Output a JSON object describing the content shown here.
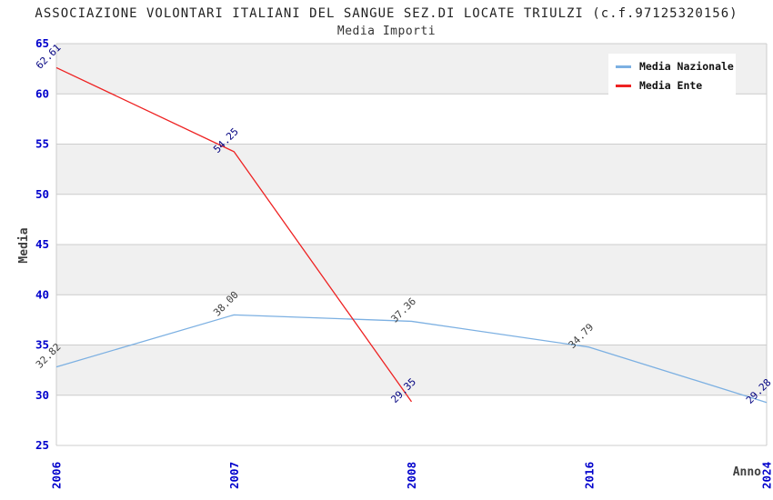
{
  "header": {
    "title": "ASSOCIAZIONE VOLONTARI ITALIANI DEL SANGUE SEZ.DI LOCATE TRIULZI (c.f.97125320156)",
    "subtitle": "Media Importi"
  },
  "legend": {
    "items": [
      {
        "label": "Media Nazionale",
        "color": "#7cb0e2"
      },
      {
        "label": "Media Ente",
        "color": "#ee2222"
      }
    ]
  },
  "chart_data": {
    "type": "line",
    "title": "ASSOCIAZIONE VOLONTARI ITALIANI DEL SANGUE SEZ.DI LOCATE TRIULZI (c.f.97125320156)",
    "subtitle": "Media Importi",
    "categories": [
      "2006",
      "2007",
      "2008",
      "2016",
      "2024"
    ],
    "series": [
      {
        "name": "Media Nazionale",
        "color": "#7cb0e2",
        "values": [
          32.82,
          38.0,
          37.36,
          34.79,
          29.28
        ],
        "labels": [
          "32.82",
          "38.00",
          "37.36",
          "34.79",
          "29.28"
        ],
        "label_colors": [
          "#404040",
          "#404040",
          "#404040",
          "#404040",
          "#000080"
        ]
      },
      {
        "name": "Media Ente",
        "color": "#ee2222",
        "values": [
          62.61,
          54.25,
          29.35,
          null,
          null
        ],
        "labels": [
          "62.61",
          "54.25",
          "29.35",
          null,
          null
        ],
        "label_colors": [
          "#000080",
          "#000080",
          "#000080",
          null,
          null
        ]
      }
    ],
    "xlabel": "Anno",
    "ylabel": "Media",
    "ylim": [
      25,
      65
    ],
    "ytick_step": 5,
    "grid": true,
    "legend_position": "top-right",
    "colors": {
      "band_gray": "#f0f0f0",
      "band_white": "#ffffff",
      "grid_line": "#cccccc",
      "tick_label": "#0000cc",
      "axis_title": "#404040"
    }
  }
}
